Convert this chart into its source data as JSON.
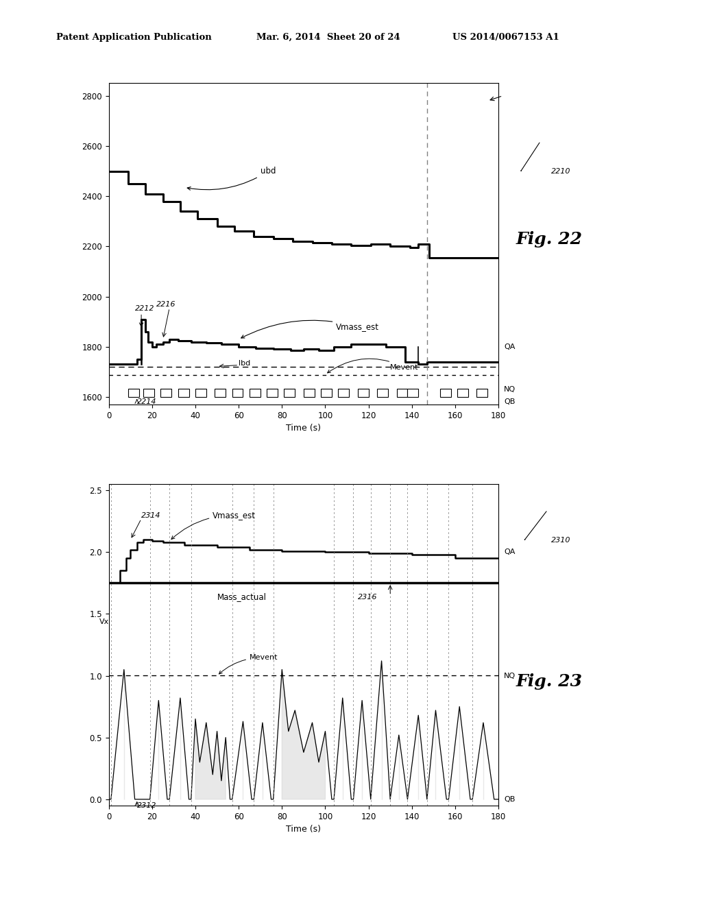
{
  "header_left": "Patent Application Publication",
  "header_mid": "Mar. 6, 2014  Sheet 20 of 24",
  "header_right": "US 2014/0067153 A1",
  "fig1": {
    "label": "2210",
    "fig_label": "Fig. 22",
    "xlim": [
      0,
      180
    ],
    "ylim": [
      1570,
      2850
    ],
    "yticks": [
      1600,
      1800,
      2000,
      2200,
      2400,
      2600,
      2800
    ],
    "xticks": [
      0,
      20,
      40,
      60,
      80,
      100,
      120,
      140,
      160,
      180
    ],
    "xlabel": "Time (s)",
    "right_labels": {
      "QA": 1800,
      "NQ": 1630,
      "QB": 1580
    },
    "vline_x": 147
  },
  "fig2": {
    "label": "2310",
    "fig_label": "Fig. 23",
    "xlim": [
      0,
      180
    ],
    "ylim": [
      -0.05,
      2.55
    ],
    "yticks": [
      0,
      0.5,
      1.0,
      1.5,
      2.0,
      2.5
    ],
    "xticks": [
      0,
      20,
      40,
      60,
      80,
      100,
      120,
      140,
      160,
      180
    ],
    "xlabel": "Time (s)",
    "right_labels": {
      "QA": 2.0,
      "NQ": 1.0,
      "QB": 0.0
    },
    "divider_y": 1.75
  }
}
